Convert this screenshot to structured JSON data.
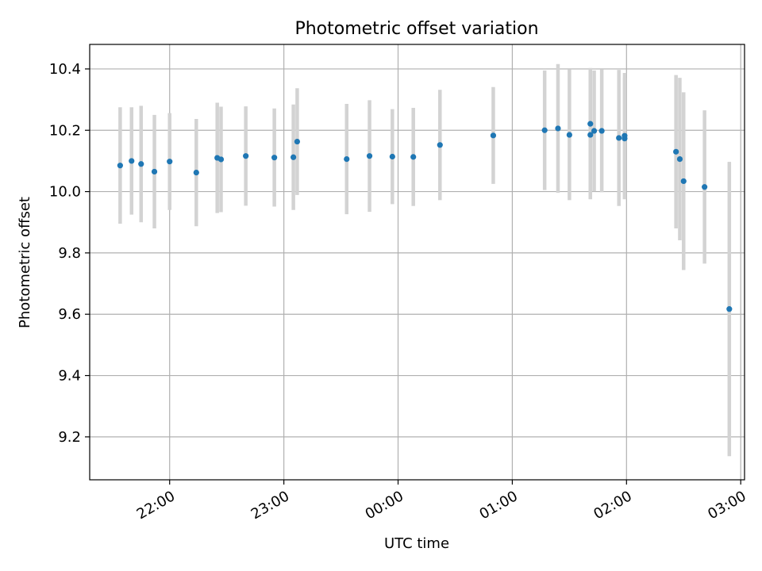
{
  "chart_data": {
    "type": "scatter",
    "title": "Photometric offset variation",
    "xlabel": "UTC time",
    "ylabel": "Photometric offset",
    "grid": true,
    "colors": {
      "points": "#1f77b4",
      "errorbars": "#d3d3d3",
      "grid": "#b0b0b0"
    },
    "x_range": [
      "21:18",
      "03:02"
    ],
    "ylim": [
      9.06,
      10.48
    ],
    "xticks": [
      "22:00",
      "23:00",
      "00:00",
      "01:00",
      "02:00",
      "03:00"
    ],
    "yticks": [
      "9.2",
      "9.4",
      "9.6",
      "9.8",
      "10.0",
      "10.2",
      "10.4"
    ],
    "series": [
      {
        "x": [
          "21:34",
          "21:40",
          "21:45",
          "21:52",
          "22:00",
          "22:14",
          "22:25",
          "22:27",
          "22:40",
          "22:55",
          "23:05",
          "23:07",
          "23:33",
          "23:45",
          "23:57",
          "00:08",
          "00:22",
          "00:50",
          "01:17",
          "01:24",
          "01:30",
          "01:41",
          "01:41",
          "01:43",
          "01:47",
          "01:56",
          "01:59",
          "01:59",
          "02:26",
          "02:28",
          "02:30",
          "02:41",
          "02:54"
        ],
        "y": [
          10.085,
          10.1,
          10.09,
          10.065,
          10.098,
          10.062,
          10.11,
          10.105,
          10.116,
          10.111,
          10.112,
          10.163,
          10.106,
          10.116,
          10.114,
          10.113,
          10.152,
          10.183,
          10.2,
          10.206,
          10.185,
          10.221,
          10.185,
          10.198,
          10.198,
          10.175,
          10.182,
          10.173,
          10.13,
          10.106,
          10.034,
          10.015,
          9.617
        ],
        "yerr": [
          0.19,
          0.175,
          0.19,
          0.185,
          0.158,
          0.175,
          0.18,
          0.172,
          0.162,
          0.16,
          0.172,
          0.174,
          0.18,
          0.182,
          0.155,
          0.16,
          0.18,
          0.158,
          0.195,
          0.21,
          0.213,
          0.182,
          0.21,
          0.197,
          0.2,
          0.222,
          0.205,
          0.198,
          0.25,
          0.265,
          0.29,
          0.25,
          0.48
        ]
      }
    ]
  }
}
